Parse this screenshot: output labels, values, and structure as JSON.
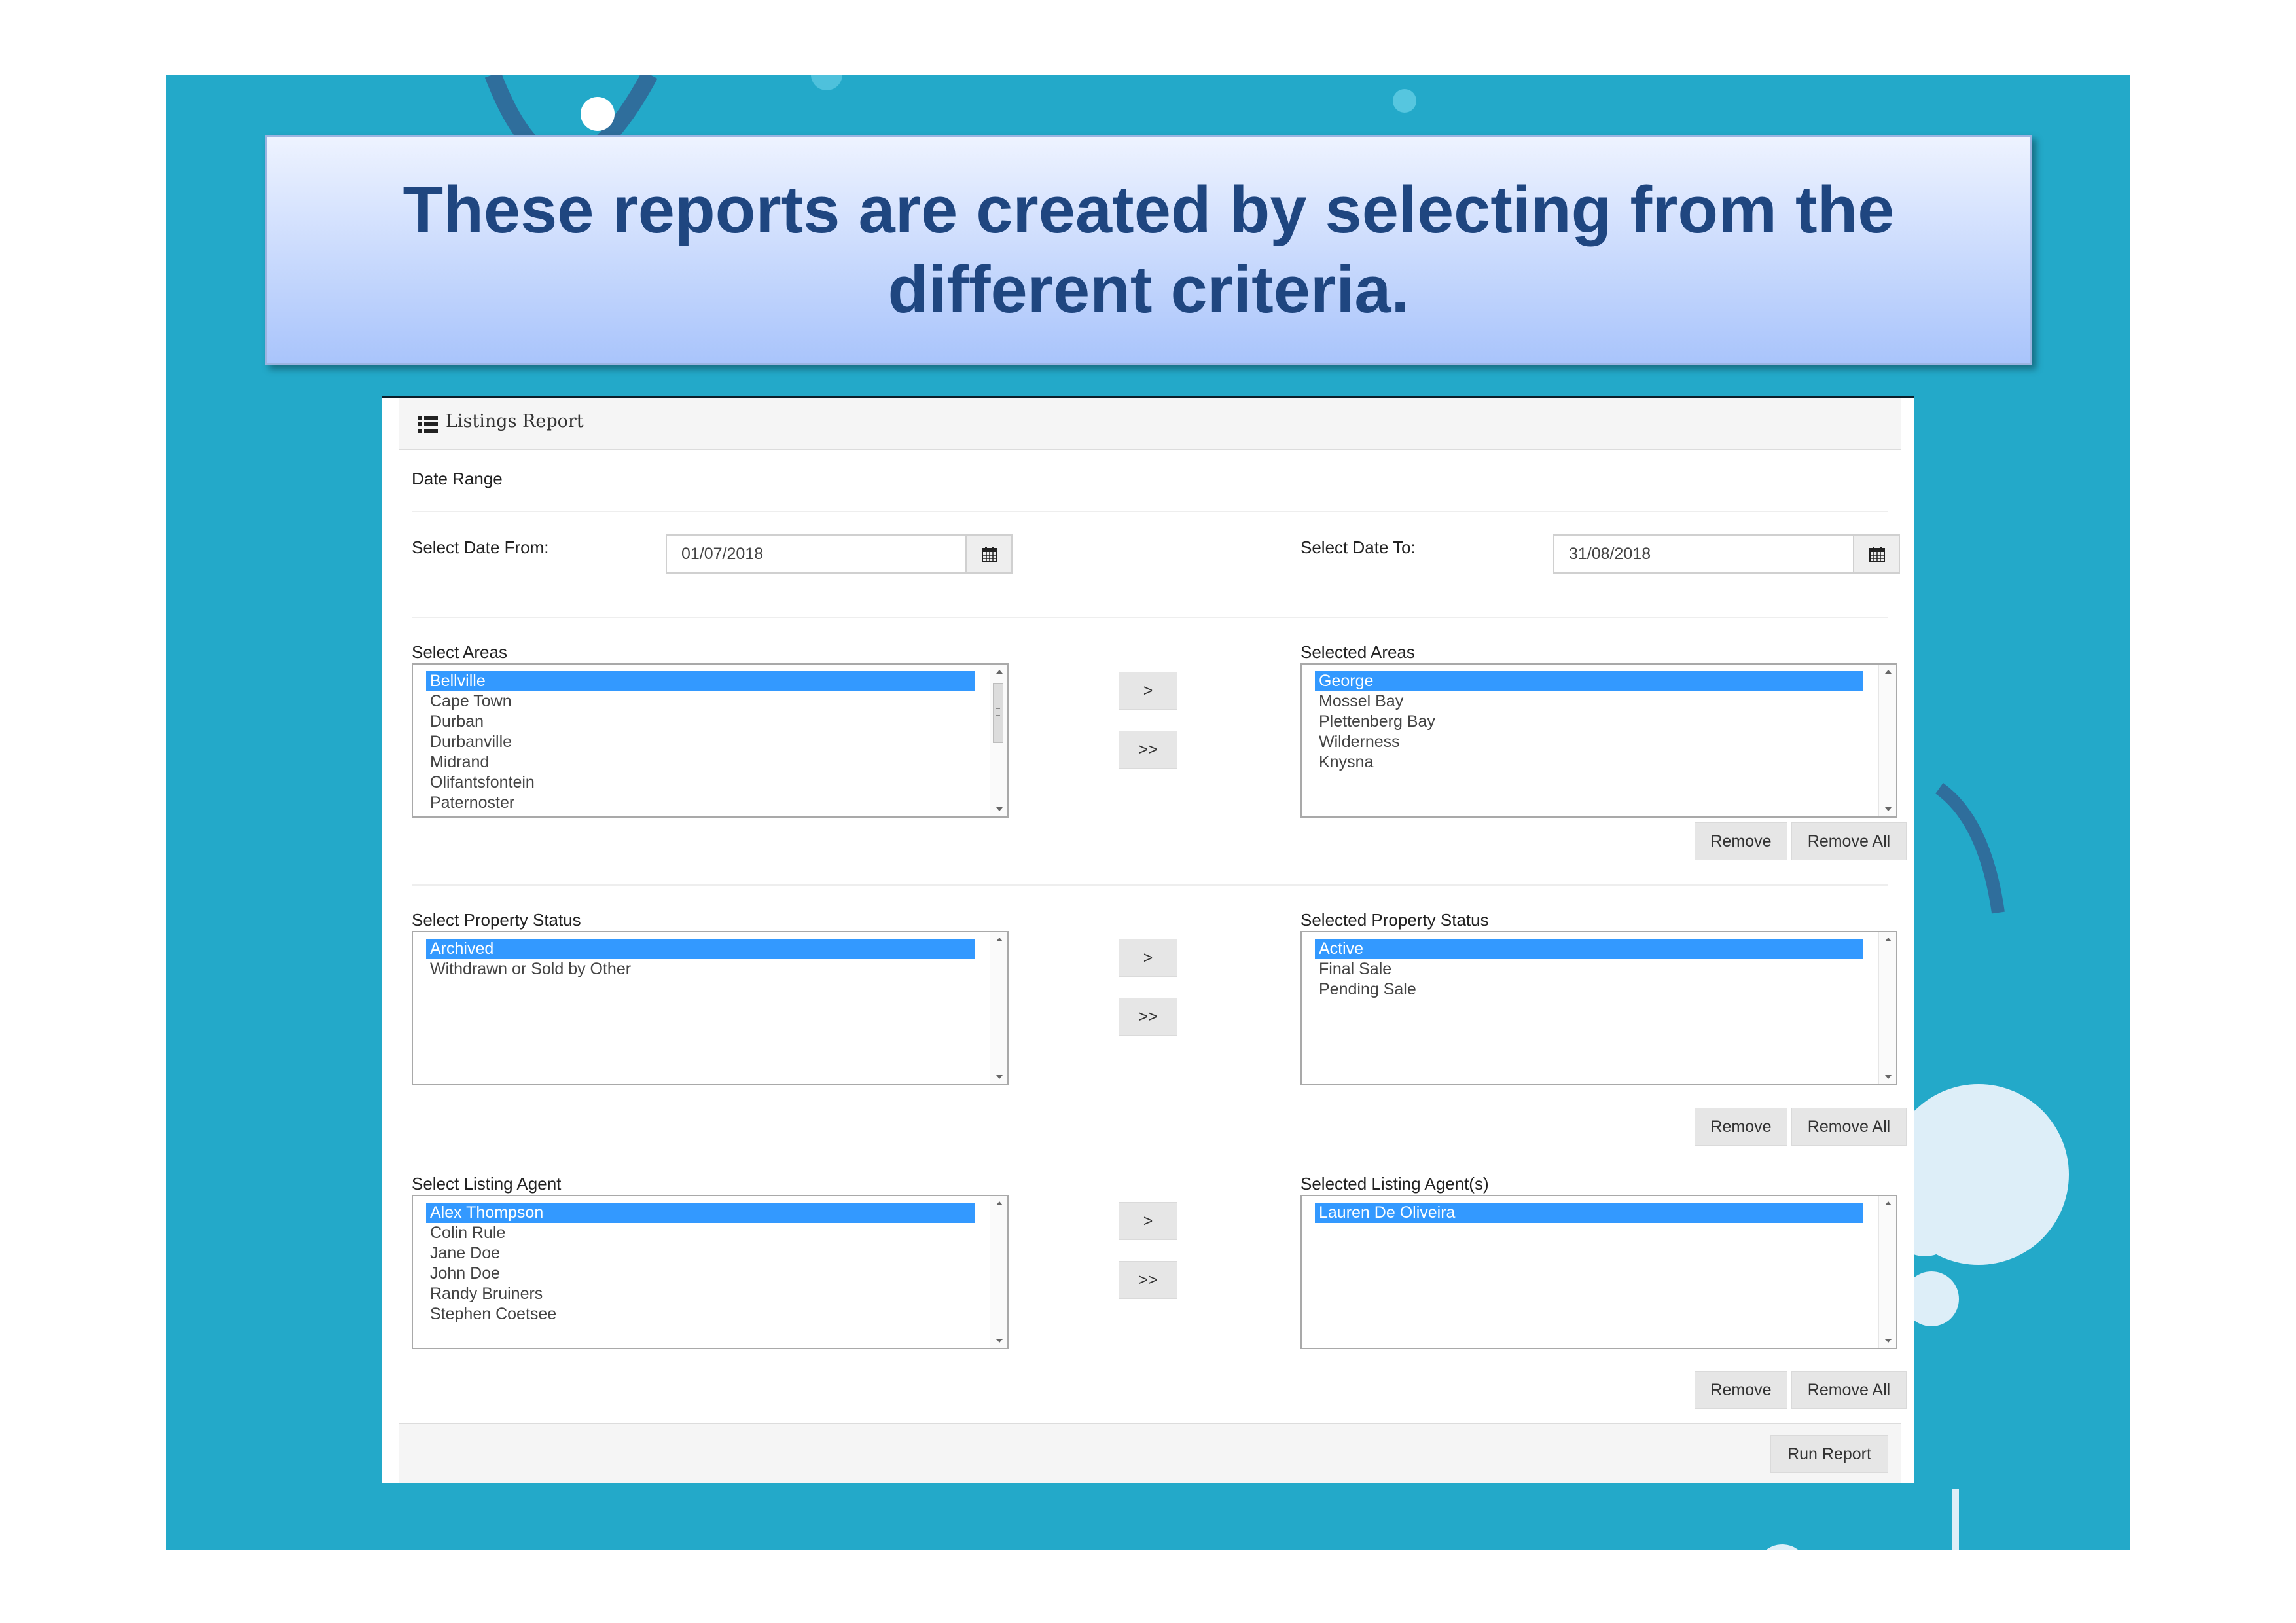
{
  "slide": {
    "title": "These reports are created by selecting from the different criteria."
  },
  "app": {
    "header_title": "Listings Report",
    "date_range_label": "Date Range",
    "date_from": {
      "label": "Select Date From:",
      "value": "01/07/2018"
    },
    "date_to": {
      "label": "Select Date To:",
      "value": "31/08/2018"
    },
    "areas": {
      "available_label": "Select Areas",
      "available": [
        "Bellville",
        "Cape Town",
        "Durban",
        "Durbanville",
        "Midrand",
        "Olifantsfontein",
        "Paternoster"
      ],
      "selected_label": "Selected Areas",
      "selected": [
        "George",
        "Mossel Bay",
        "Plettenberg Bay",
        "Wilderness",
        "Knysna"
      ]
    },
    "status": {
      "available_label": "Select Property Status",
      "available": [
        "Archived",
        "Withdrawn or Sold by Other"
      ],
      "selected_label": "Selected Property Status",
      "selected": [
        "Active",
        "Final Sale",
        "Pending Sale"
      ]
    },
    "agents": {
      "available_label": "Select Listing Agent",
      "available": [
        "Alex Thompson",
        "Colin Rule",
        "Jane Doe",
        "John Doe",
        "Randy Bruiners",
        "Stephen Coetsee"
      ],
      "selected_label": "Selected Listing Agent(s)",
      "selected": [
        "Lauren De Oliveira"
      ]
    },
    "buttons": {
      "move_one": ">",
      "move_all": ">>",
      "remove": "Remove",
      "remove_all": "Remove All",
      "run_report": "Run Report"
    }
  },
  "colors": {
    "slide_background": "#23a9c9",
    "title_text": "#1f4680",
    "selection": "#3399ff"
  }
}
